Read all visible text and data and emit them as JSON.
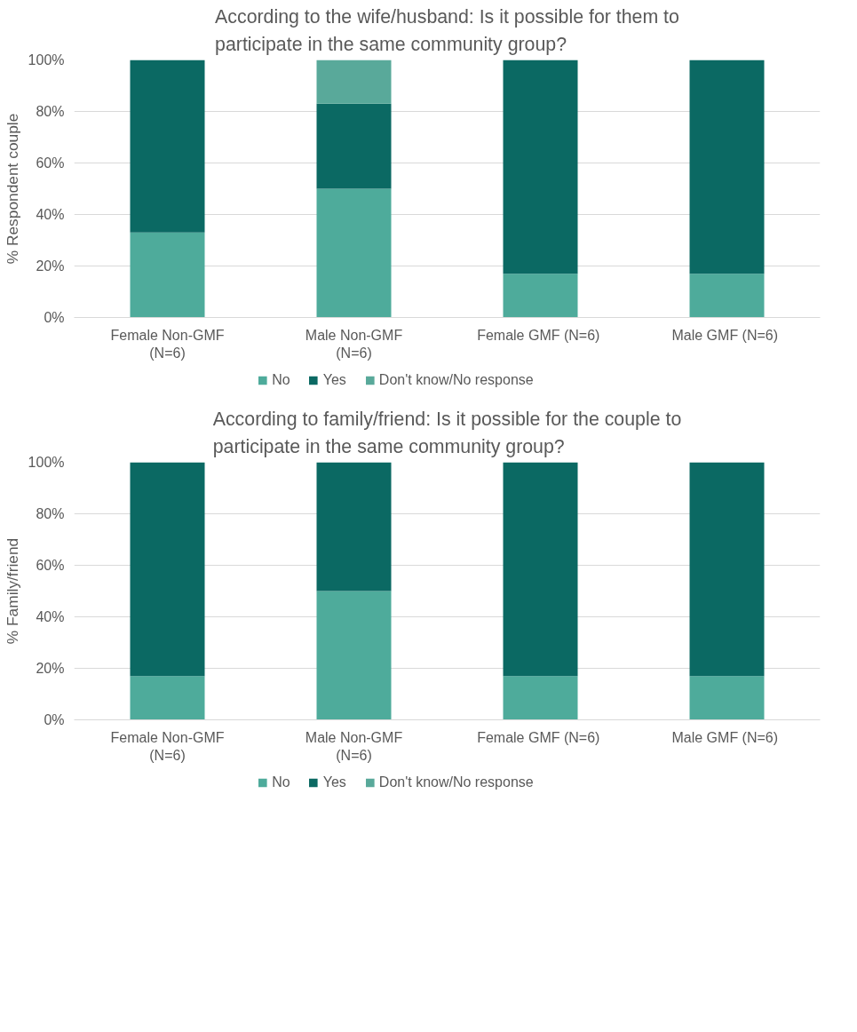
{
  "chart_data": [
    {
      "type": "bar",
      "stacked": true,
      "title": "According to the wife/husband: Is it possible for them to\nparticipate in the same community group?",
      "ylabel": "% Respondent couple",
      "categories": [
        "Female Non-GMF\n(N=6)",
        "Male Non-GMF\n(N=6)",
        "Female GMF  (N=6)",
        "Male GMF  (N=6)"
      ],
      "series": [
        {
          "name": "No",
          "color": "#4eab9b",
          "values": [
            33,
            50,
            17,
            17
          ]
        },
        {
          "name": "Yes",
          "color": "#0b6963",
          "values": [
            67,
            33,
            83,
            83
          ]
        },
        {
          "name": "Don't know/No response",
          "color": "#59a99a",
          "values": [
            null,
            17,
            null,
            null
          ]
        }
      ],
      "ylim": [
        0,
        100
      ],
      "yticks": [
        {
          "value": 0,
          "label": "0%"
        },
        {
          "value": 20,
          "label": "20%"
        },
        {
          "value": 40,
          "label": "40%"
        },
        {
          "value": 60,
          "label": "60%"
        },
        {
          "value": 80,
          "label": "80%"
        },
        {
          "value": 100,
          "label": "100%"
        }
      ],
      "grid": "y",
      "legend": "bottom"
    },
    {
      "type": "bar",
      "stacked": true,
      "title": "According to family/friend: Is it possible for the couple to\nparticipate in the same community group?",
      "ylabel": "% Family/friend",
      "categories": [
        "Female Non-GMF\n(N=6)",
        "Male Non-GMF\n(N=6)",
        "Female GMF  (N=6)",
        "Male GMF  (N=6)"
      ],
      "series": [
        {
          "name": "No",
          "color": "#4eab9b",
          "values": [
            17,
            50,
            17,
            17
          ]
        },
        {
          "name": "Yes",
          "color": "#0b6963",
          "values": [
            83,
            50,
            83,
            83
          ]
        },
        {
          "name": "Don't know/No response",
          "color": "#59a99a",
          "values": [
            null,
            null,
            null,
            null
          ]
        }
      ],
      "ylim": [
        0,
        100
      ],
      "yticks": [
        {
          "value": 0,
          "label": "0%"
        },
        {
          "value": 20,
          "label": "20%"
        },
        {
          "value": 40,
          "label": "40%"
        },
        {
          "value": 60,
          "label": "60%"
        },
        {
          "value": 80,
          "label": "80%"
        },
        {
          "value": 100,
          "label": "100%"
        }
      ],
      "grid": "y",
      "legend": "bottom"
    }
  ]
}
